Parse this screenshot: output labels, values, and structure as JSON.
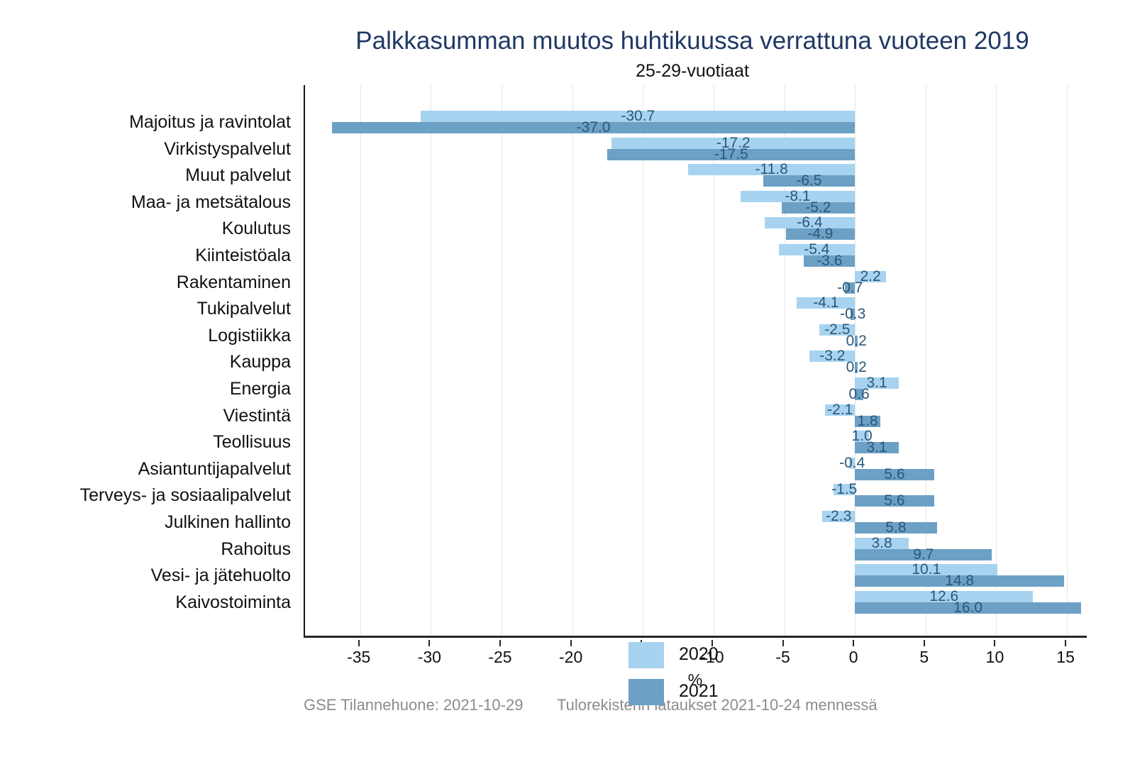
{
  "chart_data": {
    "type": "bar",
    "orientation": "horizontal",
    "title": "Palkkasumman muutos huhtikuussa verrattuna vuoteen 2019",
    "subtitle": "25-29-vuotiaat",
    "xlabel": "%",
    "xlim": [
      -38.9,
      16.5
    ],
    "xticks": [
      -35,
      -30,
      -25,
      -20,
      -15,
      -10,
      -5,
      0,
      5,
      10,
      15
    ],
    "grid": "vertical-light-gray",
    "legend_position": "inside-bottom-left",
    "value_labels": "one-decimal-centered-on-bar",
    "categories": [
      "Majoitus ja ravintolat",
      "Virkistyspalvelut",
      "Muut palvelut",
      "Maa- ja metsätalous",
      "Koulutus",
      "Kiinteistöala",
      "Rakentaminen",
      "Tukipalvelut",
      "Logistiikka",
      "Kauppa",
      "Energia",
      "Viestintä",
      "Teollisuus",
      "Asiantuntijapalvelut",
      "Terveys- ja sosiaalipalvelut",
      "Julkinen hallinto",
      "Rahoitus",
      "Vesi- ja jätehuolto",
      "Kaivostoiminta"
    ],
    "series": [
      {
        "name": "2020",
        "color": "#A7D3F0",
        "values": [
          -30.7,
          -17.2,
          -11.8,
          -8.1,
          -6.4,
          -5.4,
          2.2,
          -4.1,
          -2.5,
          -3.2,
          3.1,
          -2.1,
          1.0,
          -0.4,
          -1.5,
          -2.3,
          3.8,
          10.1,
          12.6
        ]
      },
      {
        "name": "2021",
        "color": "#6CA0C5",
        "values": [
          -37.0,
          -17.5,
          -6.5,
          -5.2,
          -4.9,
          -3.6,
          -0.7,
          -0.3,
          0.2,
          0.2,
          0.6,
          1.8,
          3.1,
          5.6,
          5.6,
          5.8,
          9.7,
          14.8,
          16.0
        ]
      }
    ],
    "colors": {
      "title": "#1F3864",
      "value_label": "#2C5778",
      "gridline": "#E5E5E5",
      "axis": "#262626",
      "footer_text": "#8C8C8C"
    }
  },
  "footer": {
    "left": "GSE Tilannehuone: 2021-10-29",
    "right": "Tulorekisterin lataukset 2021-10-24 mennessä"
  }
}
